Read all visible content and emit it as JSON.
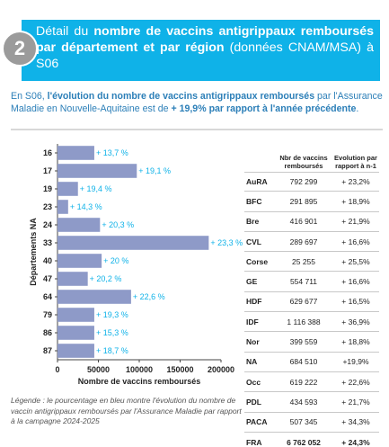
{
  "header": {
    "badge": "2",
    "title_part1": "Détail du ",
    "title_bold": "nombre de vaccins antigrippaux remboursés par département et par région",
    "title_part2": " (données CNAM/MSA) à S06"
  },
  "intro": {
    "part1": "En S06, ",
    "bold1": "l'évolution du nombre de vaccins antigrippaux remboursés",
    "part2": " par l'Assurance Maladie en Nouvelle-Aquitaine est de ",
    "bold2": "+ 19,9% par rapport à l'année précédente",
    "part3": "."
  },
  "chart_data": {
    "type": "bar",
    "orientation": "horizontal",
    "categories": [
      "16",
      "17",
      "19",
      "23",
      "24",
      "33",
      "40",
      "47",
      "64",
      "79",
      "86",
      "87"
    ],
    "values": [
      45000,
      97000,
      25000,
      13000,
      52000,
      185000,
      54000,
      37000,
      90000,
      45000,
      45000,
      45000
    ],
    "labels": [
      "+ 13,7 %",
      "+ 19,1 %",
      "+ 19,4 %",
      "+ 14,3 %",
      "+ 20,3 %",
      "+ 23,3 %",
      "+ 20 %",
      "+ 20,2 %",
      "+ 22,6 %",
      "+ 19,3 %",
      "+ 15,3 %",
      "+ 18,7 %"
    ],
    "xticks": [
      "0",
      "50000",
      "100000",
      "150000",
      "200000"
    ],
    "xlim": [
      0,
      200000
    ],
    "xlabel": "Nombre de vaccins remboursés",
    "ylabel": "Départements NA",
    "bar_color": "#8e9ac8",
    "label_color": "#0fb2e8"
  },
  "legend": "Légende : le pourcentage en bleu montre l'évolution du nombre de vaccin antigrippaux remboursés par l'Assurance Maladie par rapport à la campagne 2024-2025",
  "table": {
    "header": [
      "",
      "Nbr de vaccins remboursés",
      "Evolution par rapport à n-1"
    ],
    "rows": [
      [
        "AuRA",
        "792 299",
        "+ 23,2%"
      ],
      [
        "BFC",
        "291 895",
        "+ 18,9%"
      ],
      [
        "Bre",
        "416 901",
        "+ 21,9%"
      ],
      [
        "CVL",
        "289 697",
        "+ 16,6%"
      ],
      [
        "Corse",
        "25 255",
        "+ 25,5%"
      ],
      [
        "GE",
        "554 711",
        "+ 16,6%"
      ],
      [
        "HDF",
        "629 677",
        "+ 16,5%"
      ],
      [
        "IDF",
        "1 116 388",
        "+ 36,9%"
      ],
      [
        "Nor",
        "399 559",
        "+ 18,8%"
      ],
      [
        "NA",
        "684 510",
        "+19,9%"
      ],
      [
        "Occ",
        "619 222",
        "+ 22,6%"
      ],
      [
        "PDL",
        "434 593",
        "+ 21,7%"
      ],
      [
        "PACA",
        "507 345",
        "+ 34,3%"
      ],
      [
        "FRA",
        "6 762 052",
        "+ 24,3%"
      ]
    ]
  },
  "colors": {
    "header_band": "#0fb2e8",
    "badge": "#9b9b9b",
    "intro_text": "#2c7fb8"
  }
}
